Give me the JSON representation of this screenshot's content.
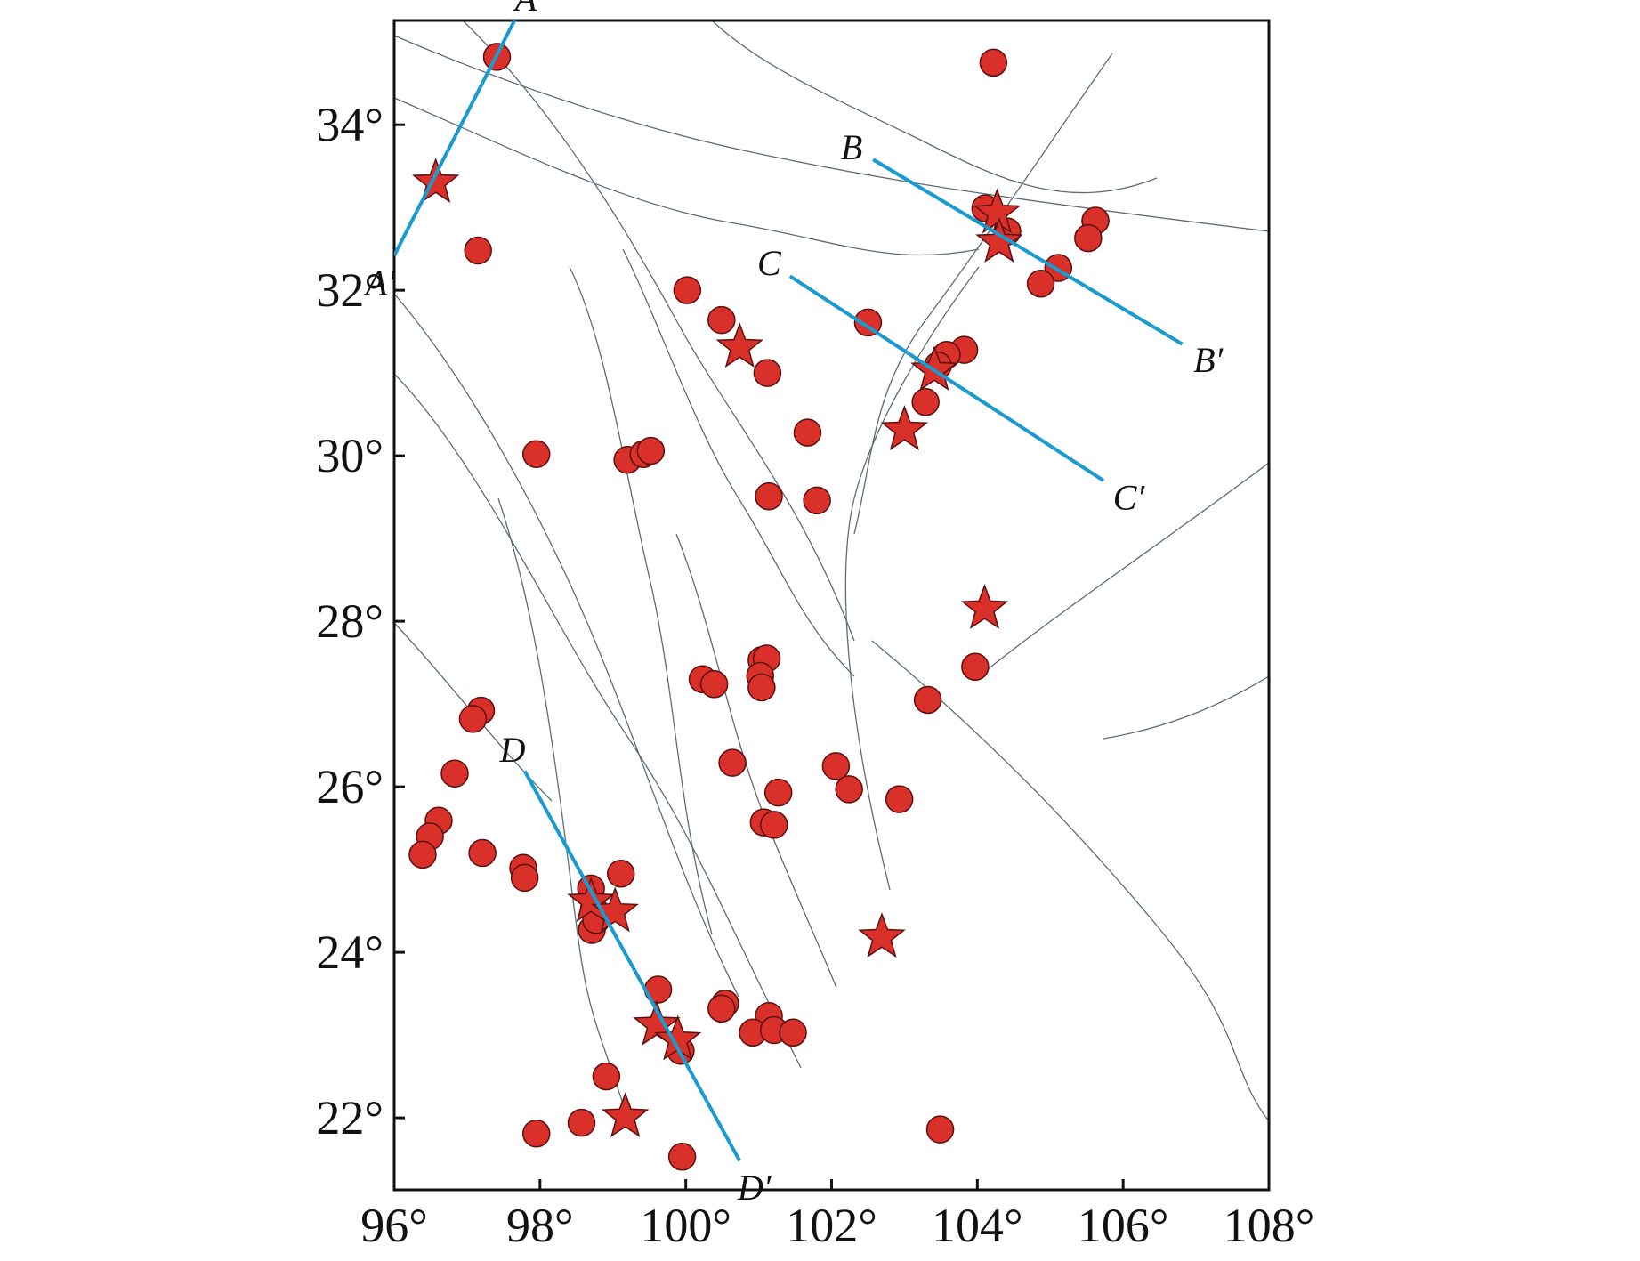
{
  "chart_data": {
    "type": "scatter",
    "xlim": [
      96,
      108
    ],
    "ylim": [
      21.13,
      35.26
    ],
    "xticks": [
      {
        "value": 96,
        "label": "96°"
      },
      {
        "value": 98,
        "label": "98°"
      },
      {
        "value": 100,
        "label": "100°"
      },
      {
        "value": 102,
        "label": "102°"
      },
      {
        "value": 104,
        "label": "104°"
      },
      {
        "value": 106,
        "label": "106°"
      },
      {
        "value": 108,
        "label": "108°"
      }
    ],
    "yticks": [
      {
        "value": 22,
        "label": "22°"
      },
      {
        "value": 24,
        "label": "24°"
      },
      {
        "value": 26,
        "label": "26°"
      },
      {
        "value": 28,
        "label": "28°"
      },
      {
        "value": 30,
        "label": "30°"
      },
      {
        "value": 32,
        "label": "32°"
      },
      {
        "value": 34,
        "label": "34°"
      }
    ],
    "series": [
      {
        "marker": "circle",
        "color": "#d9302a",
        "x": [
          97.41,
          104.22,
          97.15,
          100.02,
          100.49,
          101.12,
          102.5,
          104.11,
          104.41,
          105.62,
          105.52,
          105.11,
          104.87,
          103.82,
          103.58,
          103.46,
          103.29,
          101.67,
          97.95,
          99.2,
          99.42,
          99.52,
          101.14,
          101.8,
          103.97,
          103.32,
          101.04,
          101.11,
          101.02,
          101.04,
          100.23,
          100.39,
          97.19,
          97.08,
          96.83,
          96.61,
          96.49,
          96.39,
          97.21,
          97.77,
          97.79,
          100.64,
          101.27,
          101.07,
          101.21,
          102.06,
          102.24,
          102.93,
          98.7,
          98.74,
          98.71,
          99.11,
          98.77,
          99.62,
          100.54,
          100.49,
          101.14,
          100.92,
          101.21,
          101.47,
          99.93,
          98.91,
          98.57,
          97.95,
          99.95,
          103.49
        ],
        "y": [
          34.82,
          34.75,
          32.48,
          32.0,
          31.64,
          31.0,
          31.61,
          32.99,
          32.71,
          32.84,
          32.63,
          32.27,
          32.08,
          31.28,
          31.22,
          31.09,
          30.65,
          30.28,
          30.02,
          29.95,
          30.02,
          30.06,
          29.51,
          29.46,
          27.45,
          27.05,
          27.53,
          27.55,
          27.34,
          27.2,
          27.3,
          27.24,
          26.92,
          26.82,
          26.16,
          25.59,
          25.4,
          25.18,
          25.2,
          25.02,
          24.9,
          26.29,
          25.93,
          25.57,
          25.54,
          26.25,
          25.97,
          25.85,
          24.77,
          24.52,
          24.27,
          24.95,
          24.39,
          23.55,
          23.38,
          23.32,
          23.23,
          23.03,
          23.06,
          23.03,
          22.81,
          22.5,
          21.94,
          21.81,
          21.53,
          21.86
        ]
      },
      {
        "marker": "star",
        "color": "#d9302a",
        "x": [
          96.57,
          100.74,
          104.27,
          104.3,
          103.41,
          103.0,
          104.1,
          102.69,
          98.7,
          99.03,
          99.6,
          99.89,
          99.17
        ],
        "y": [
          33.3,
          31.31,
          32.93,
          32.58,
          31.03,
          30.31,
          28.15,
          24.18,
          24.61,
          24.49,
          23.12,
          22.94,
          22.01
        ]
      }
    ],
    "profiles": [
      {
        "start_label": "A",
        "end_label": "A′",
        "x": [
          97.65,
          96.0
        ],
        "y": [
          35.26,
          32.42
        ]
      },
      {
        "start_label": "B",
        "end_label": "B′",
        "x": [
          102.57,
          106.81
        ],
        "y": [
          33.58,
          31.35
        ]
      },
      {
        "start_label": "C",
        "end_label": "C′",
        "x": [
          101.43,
          105.73
        ],
        "y": [
          32.17,
          29.7
        ]
      },
      {
        "start_label": "D",
        "end_label": "D′",
        "x": [
          97.79,
          100.74
        ],
        "y": [
          26.19,
          21.48
        ]
      }
    ],
    "profile_color": "#1a9bd0"
  }
}
